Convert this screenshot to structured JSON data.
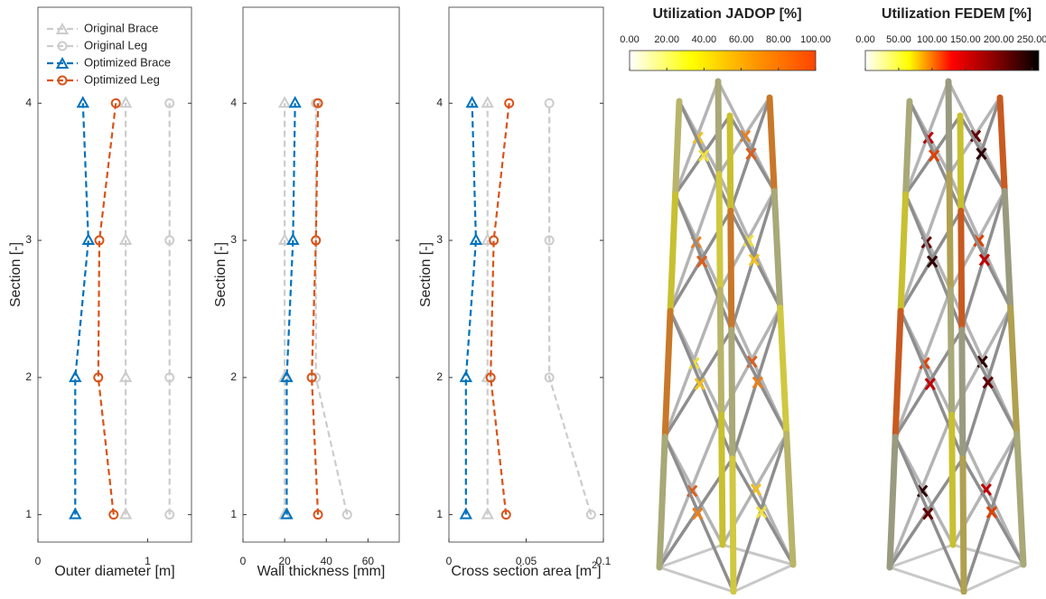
{
  "chart_data": [
    {
      "type": "line",
      "xlabel": "Outer diameter [m]",
      "ylabel": "Section [-]",
      "xlim": [
        0,
        1.4
      ],
      "xticks": [
        0,
        1
      ],
      "ylim": [
        0.8,
        4.7
      ],
      "yticks": [
        1,
        2,
        3,
        4
      ],
      "y": [
        1,
        2,
        3,
        4
      ],
      "legend": "upper left",
      "series": [
        {
          "name": "Original Brace",
          "color": "#cccccc",
          "marker": "triangle",
          "values": [
            0.8,
            0.8,
            0.8,
            0.8
          ]
        },
        {
          "name": "Original Leg",
          "color": "#cccccc",
          "marker": "circle",
          "values": [
            1.2,
            1.2,
            1.2,
            1.2
          ]
        },
        {
          "name": "Optimized Brace",
          "color": "#0072bd",
          "marker": "triangle",
          "values": [
            0.34,
            0.34,
            0.46,
            0.41
          ]
        },
        {
          "name": "Optimized Leg",
          "color": "#d95319",
          "marker": "circle",
          "values": [
            0.69,
            0.55,
            0.56,
            0.71
          ]
        }
      ]
    },
    {
      "type": "line",
      "xlabel": "Wall thickness [mm]",
      "ylabel": "Section [-]",
      "xlim": [
        0,
        75
      ],
      "xticks": [
        0,
        20,
        40,
        60
      ],
      "ylim": [
        0.8,
        4.7
      ],
      "yticks": [
        1,
        2,
        3,
        4
      ],
      "y": [
        1,
        2,
        3,
        4
      ],
      "series": [
        {
          "color": "#cccccc",
          "marker": "triangle",
          "values": [
            20,
            20,
            20,
            20
          ]
        },
        {
          "color": "#cccccc",
          "marker": "circle",
          "values": [
            50,
            35,
            35,
            35
          ]
        },
        {
          "color": "#0072bd",
          "marker": "triangle",
          "values": [
            21,
            21,
            24,
            25
          ]
        },
        {
          "color": "#d95319",
          "marker": "circle",
          "values": [
            36,
            33,
            35,
            36
          ]
        }
      ]
    },
    {
      "type": "line",
      "xlabel": "Cross section area [m",
      "xlabel_sup": "2",
      "xlabel_end": "]",
      "ylabel": "Section [-]",
      "xlim": [
        0,
        0.1
      ],
      "xticks": [
        0,
        0.05,
        0.1
      ],
      "ylim": [
        0.8,
        4.7
      ],
      "yticks": [
        1,
        2,
        3,
        4
      ],
      "y": [
        1,
        2,
        3,
        4
      ],
      "series": [
        {
          "color": "#cccccc",
          "marker": "triangle",
          "values": [
            0.025,
            0.025,
            0.025,
            0.025
          ]
        },
        {
          "color": "#cccccc",
          "marker": "circle",
          "values": [
            0.092,
            0.065,
            0.065,
            0.065
          ]
        },
        {
          "color": "#0072bd",
          "marker": "triangle",
          "values": [
            0.011,
            0.011,
            0.0175,
            0.015
          ]
        },
        {
          "color": "#d95319",
          "marker": "circle",
          "values": [
            0.037,
            0.027,
            0.029,
            0.039
          ]
        }
      ]
    },
    {
      "type": "colorbar",
      "title": "Utilization JADOP [%]",
      "colors": [
        "#ffffff",
        "#ffff00",
        "#ff9900",
        "#ff4400"
      ],
      "xlim": [
        0,
        100
      ],
      "xticks": [
        {
          "value": 0,
          "label": "0.00"
        },
        {
          "value": 20,
          "label": "20.00"
        },
        {
          "value": 40,
          "label": "40.00"
        },
        {
          "value": 60,
          "label": "60.00"
        },
        {
          "value": 80,
          "label": "80.00"
        },
        {
          "value": 100,
          "label": "100.00"
        }
      ]
    },
    {
      "type": "colorbar",
      "title": "Utilization FEDEM [%]",
      "colors": [
        "#ffffff",
        "#ffff00",
        "#ff0000",
        "#880000",
        "#000000"
      ],
      "xlim": [
        0,
        260
      ],
      "xticks": [
        {
          "value": 0,
          "label": "0.00"
        },
        {
          "value": 50,
          "label": "50.00"
        },
        {
          "value": 100,
          "label": "100.00"
        },
        {
          "value": 150,
          "label": "150.00"
        },
        {
          "value": 200,
          "label": "200.00"
        },
        {
          "value": 250,
          "label": "250.00"
        }
      ]
    }
  ]
}
